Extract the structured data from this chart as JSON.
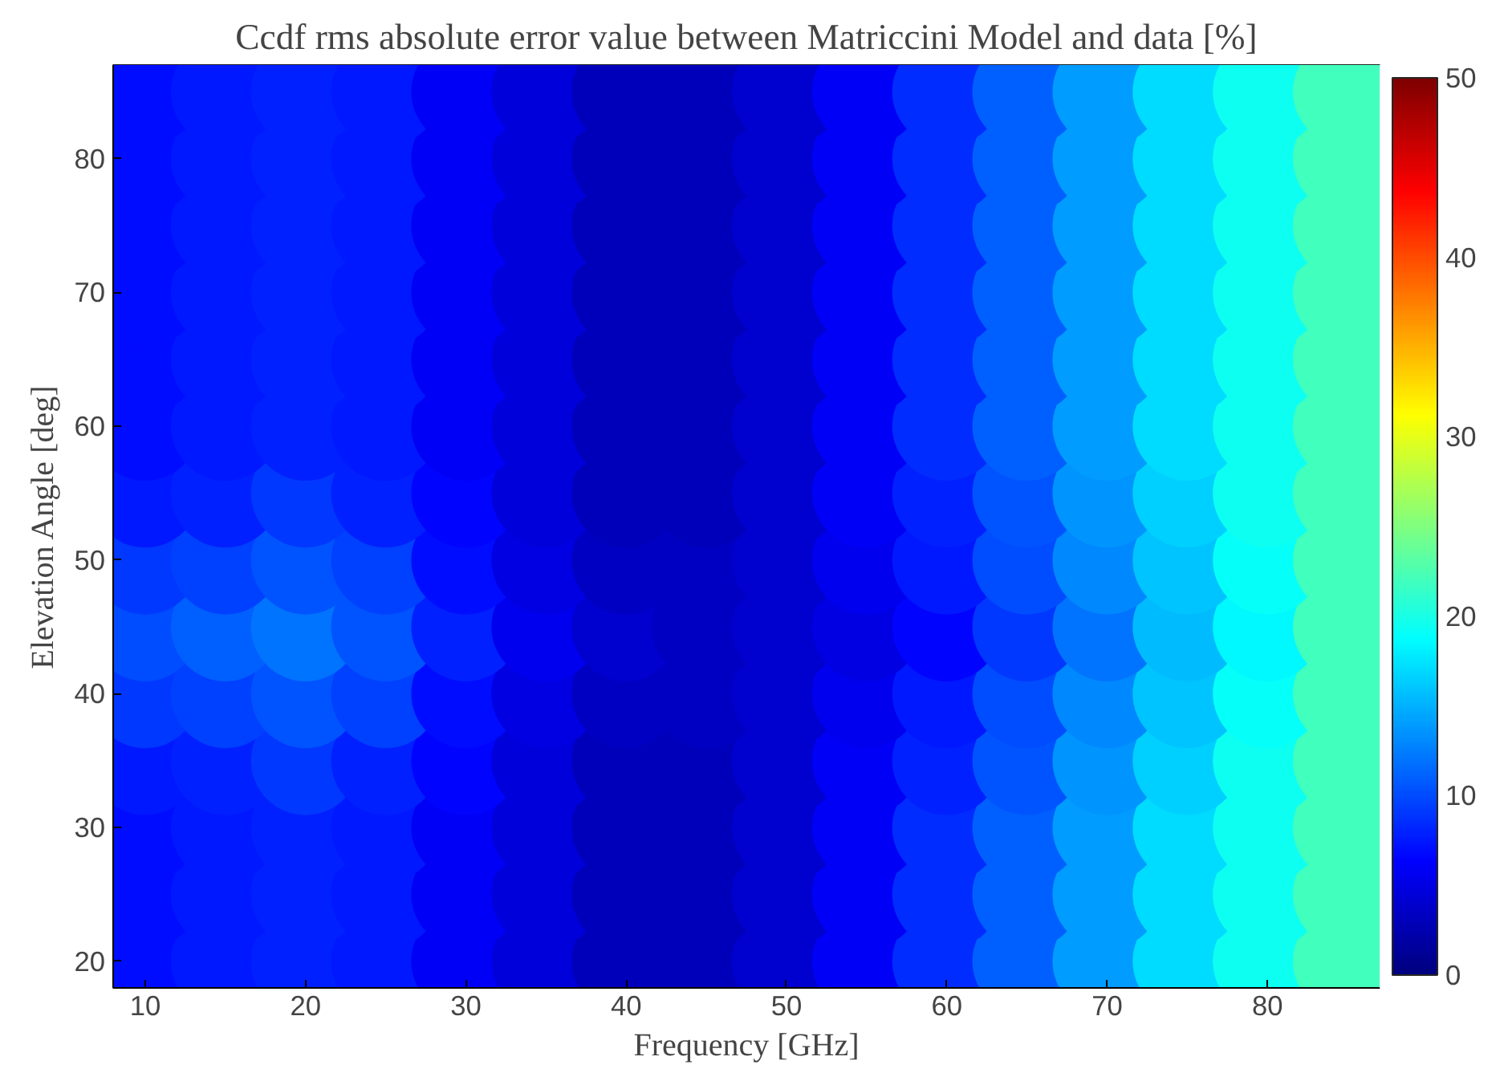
{
  "chart_data": {
    "type": "scatter",
    "title": "Ccdf rms absolute error value between Matriccini Model and data [%]",
    "xlabel": "Frequency [GHz]",
    "ylabel": "Elevation Angle [deg]",
    "xlim": [
      8,
      87
    ],
    "ylim": [
      18,
      87
    ],
    "xticks": [
      10,
      20,
      30,
      40,
      50,
      60,
      70,
      80
    ],
    "yticks": [
      20,
      30,
      40,
      50,
      60,
      70,
      80
    ],
    "clim": [
      0,
      50
    ],
    "cticks": [
      0,
      10,
      20,
      30,
      40,
      50
    ],
    "marker": "circle",
    "series": [
      {
        "x": [
          10,
          15,
          20,
          25,
          30,
          35,
          40,
          45,
          50,
          55,
          60,
          65,
          70,
          75,
          80,
          85,
          10,
          15,
          20,
          25,
          30,
          35,
          40,
          45,
          50,
          55,
          60,
          65,
          70,
          75,
          80,
          85,
          10,
          15,
          20,
          25,
          30,
          35,
          40,
          45,
          50,
          55,
          60,
          65,
          70,
          75,
          80,
          85,
          10,
          15,
          20,
          25,
          30,
          35,
          40,
          45,
          50,
          55,
          60,
          65,
          70,
          75,
          80,
          85,
          10,
          15,
          20,
          25,
          30,
          35,
          40,
          45,
          50,
          55,
          60,
          65,
          70,
          75,
          80,
          85,
          10,
          15,
          20,
          25,
          30,
          35,
          40,
          45,
          50,
          55,
          60,
          65,
          70,
          75,
          80,
          85,
          10,
          15,
          20,
          25,
          30,
          35,
          40,
          45,
          50,
          55,
          60,
          65,
          70,
          75,
          80,
          85,
          10,
          15,
          20,
          25,
          30,
          35,
          40,
          45,
          50,
          55,
          60,
          65,
          70,
          75,
          80,
          85,
          10,
          15,
          20,
          25,
          30,
          35,
          40,
          45,
          50,
          55,
          60,
          65,
          70,
          75,
          80,
          85,
          10,
          15,
          20,
          25,
          30,
          35,
          40,
          45,
          50,
          55,
          60,
          65,
          70,
          75,
          80,
          85,
          10,
          15,
          20,
          25,
          30,
          35,
          40,
          45,
          50,
          55,
          60,
          65,
          70,
          75,
          80,
          85,
          10,
          15,
          20,
          25,
          30,
          35,
          40,
          45,
          50,
          55,
          60,
          65,
          70,
          75,
          80,
          85,
          10,
          15,
          20,
          25,
          30,
          35,
          40,
          45,
          50,
          55,
          60,
          65,
          70,
          75,
          80,
          85,
          10,
          15,
          20,
          25,
          30,
          35,
          40,
          45,
          50,
          55,
          60,
          65,
          70,
          75,
          80,
          85
        ],
        "values": [
          20,
          20,
          20,
          20,
          20,
          20,
          20,
          20,
          20,
          20,
          20,
          20,
          20,
          20,
          20,
          20,
          25,
          25,
          25,
          25,
          25,
          25,
          25,
          25,
          25,
          25,
          25,
          25,
          25,
          25,
          25,
          25,
          30,
          30,
          30,
          30,
          30,
          30,
          30,
          30,
          30,
          30,
          30,
          30,
          30,
          30,
          30,
          30,
          35,
          35,
          35,
          35,
          35,
          35,
          35,
          35,
          35,
          35,
          35,
          35,
          35,
          35,
          35,
          35,
          40,
          40,
          40,
          40,
          40,
          40,
          40,
          40,
          40,
          40,
          40,
          40,
          40,
          40,
          40,
          40,
          45,
          45,
          45,
          45,
          45,
          45,
          45,
          45,
          45,
          45,
          45,
          45,
          45,
          45,
          45,
          45,
          50,
          50,
          50,
          50,
          50,
          50,
          50,
          50,
          50,
          50,
          50,
          50,
          50,
          50,
          50,
          50,
          55,
          55,
          55,
          55,
          55,
          55,
          55,
          55,
          55,
          55,
          55,
          55,
          55,
          55,
          55,
          55,
          60,
          60,
          60,
          60,
          60,
          60,
          60,
          60,
          60,
          60,
          60,
          60,
          60,
          60,
          60,
          60,
          65,
          65,
          65,
          65,
          65,
          65,
          65,
          65,
          65,
          65,
          65,
          65,
          65,
          65,
          65,
          65,
          70,
          70,
          70,
          70,
          70,
          70,
          70,
          70,
          70,
          70,
          70,
          70,
          70,
          70,
          70,
          70,
          75,
          75,
          75,
          75,
          75,
          75,
          75,
          75,
          75,
          75,
          75,
          75,
          75,
          75,
          75,
          75,
          80,
          80,
          80,
          80,
          80,
          80,
          80,
          80,
          80,
          80,
          80,
          80,
          80,
          80,
          80,
          80,
          85,
          85,
          85,
          85,
          85,
          85,
          85,
          85,
          85,
          85,
          85,
          85,
          85,
          85,
          85,
          85
        ],
        "cvalues": [
          7,
          7.5,
          8,
          7.5,
          6,
          4.5,
          3,
          3,
          4,
          6,
          8.5,
          11,
          14,
          17,
          19.5,
          22,
          7,
          7.5,
          8,
          7.5,
          6,
          4.5,
          3,
          3,
          4,
          6,
          8.5,
          11,
          14,
          17,
          19.5,
          22,
          7,
          7.5,
          8,
          7.5,
          6,
          4.5,
          3,
          3,
          4,
          6,
          8.5,
          11,
          14,
          17,
          19.5,
          22,
          7.5,
          8,
          9,
          8,
          6.5,
          4.5,
          3,
          3,
          4,
          6,
          8,
          10.5,
          13.5,
          16.5,
          19.5,
          22,
          9,
          9.5,
          10.5,
          9.5,
          7,
          5,
          3.5,
          3.5,
          4,
          5.5,
          7.5,
          10,
          13,
          16,
          19,
          22,
          10,
          11,
          12,
          10.5,
          8,
          5.5,
          4,
          3.5,
          4,
          5,
          6.5,
          9,
          12,
          15.5,
          18.5,
          22,
          9,
          9.5,
          10.5,
          9.5,
          7,
          5,
          3.5,
          3.5,
          4,
          5.5,
          7.5,
          10,
          13,
          16,
          19,
          22,
          7.5,
          8,
          9,
          8,
          6.5,
          4.5,
          3,
          3,
          4,
          6,
          8,
          10.5,
          13.5,
          16.5,
          19.5,
          22,
          7,
          7.5,
          8,
          7.5,
          6,
          4.5,
          3,
          3,
          4,
          6,
          8.5,
          11,
          14,
          17,
          19.5,
          22,
          7,
          7.5,
          8,
          7.5,
          6,
          4.5,
          3,
          3,
          4,
          6,
          8.5,
          11,
          14,
          17,
          19.5,
          22,
          7,
          7.5,
          8,
          7.5,
          6,
          4.5,
          3,
          3,
          4,
          6,
          8.5,
          11,
          14,
          17,
          19.5,
          22,
          7,
          7.5,
          8,
          7.5,
          6,
          4.5,
          3,
          3,
          4,
          6,
          8.5,
          11,
          14,
          17,
          19.5,
          22,
          7,
          7.5,
          8,
          7.5,
          6,
          4.5,
          3,
          3,
          4,
          6,
          8.5,
          11,
          14,
          17,
          19.5,
          22,
          7,
          7.5,
          8,
          7.5,
          6,
          4.5,
          3,
          3,
          4,
          6,
          8.5,
          11,
          14,
          17,
          19.5,
          22
        ]
      }
    ]
  }
}
